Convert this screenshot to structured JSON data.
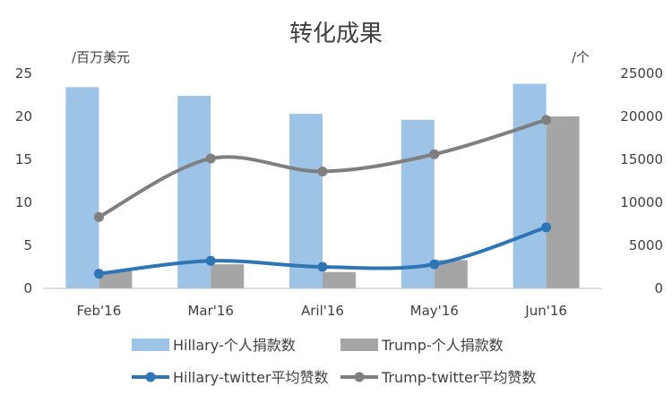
{
  "chart_data": {
    "type": "bar",
    "title": "转化成果",
    "categories": [
      "Feb'16",
      "Mar'16",
      "Aril'16",
      "May'16",
      "Jun'16"
    ],
    "y_left": {
      "unit_label": "/百万美元",
      "range": [
        0,
        25
      ],
      "ticks": [
        "0",
        "5",
        "10",
        "15",
        "20",
        "25"
      ]
    },
    "y_right": {
      "unit_label": "/个",
      "range": [
        0,
        25000
      ],
      "ticks": [
        "0",
        "5000",
        "10000",
        "15000",
        "20000",
        "25000"
      ]
    },
    "series": [
      {
        "name": "Hillary-个人捐款数",
        "kind": "bar",
        "axis": "left",
        "color": "#9DC3E6",
        "values": [
          23.4,
          22.4,
          20.3,
          19.6,
          23.8
        ]
      },
      {
        "name": "Trump-个人捐款数",
        "kind": "bar",
        "axis": "left",
        "color": "#A5A5A5",
        "values": [
          2.0,
          2.8,
          1.9,
          3.3,
          20.0
        ]
      },
      {
        "name": "Hillary-twitter平均赞数",
        "kind": "line",
        "axis": "right",
        "color": "#2E75B6",
        "values": [
          1700,
          3200,
          2500,
          2800,
          7100
        ]
      },
      {
        "name": "Trump-twitter平均赞数",
        "kind": "line",
        "axis": "right",
        "color": "#7F7F7F",
        "values": [
          8300,
          15100,
          13600,
          15600,
          19600
        ]
      }
    ],
    "grid": false,
    "legend_position": "bottom"
  }
}
